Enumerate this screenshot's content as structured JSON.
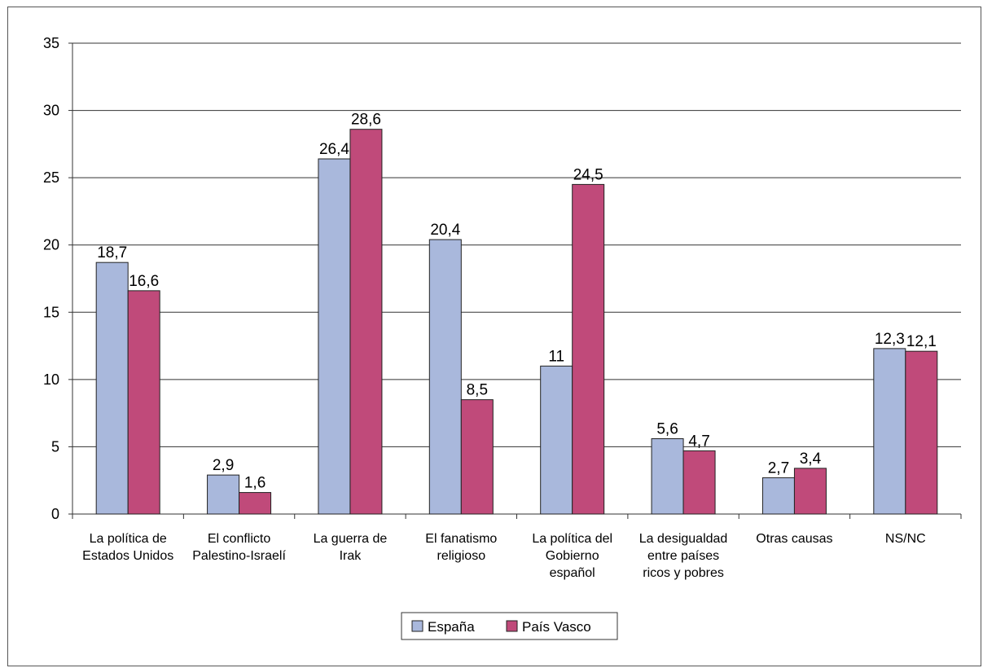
{
  "chart_data": {
    "type": "bar",
    "title": "",
    "xlabel": "",
    "ylabel": "",
    "ylim": [
      0,
      35
    ],
    "yticks": [
      0,
      5,
      10,
      15,
      20,
      25,
      30,
      35
    ],
    "yticks_label": [
      "0",
      "5",
      "10",
      "15",
      "20",
      "25",
      "30",
      "35"
    ],
    "grid": true,
    "legend_position": "bottom",
    "categories": [
      [
        "La política de",
        "Estados Unidos"
      ],
      [
        "El conflicto",
        "Palestino-Israelí"
      ],
      [
        "La guerra de",
        "Irak"
      ],
      [
        "El fanatismo",
        "religioso"
      ],
      [
        "La política del",
        "Gobierno",
        "español"
      ],
      [
        "La desigualdad",
        "entre países",
        "ricos y pobres"
      ],
      [
        "Otras causas"
      ],
      [
        "NS/NC"
      ]
    ],
    "series": [
      {
        "name": "España",
        "color": "#a9b8dc",
        "values": [
          18.7,
          2.9,
          26.4,
          20.4,
          11,
          5.6,
          2.7,
          12.3
        ],
        "labels": [
          "18,7",
          "2,9",
          "26,4",
          "20,4",
          "11",
          "5,6",
          "2,7",
          "12,3"
        ]
      },
      {
        "name": "País Vasco",
        "color": "#c04a7a",
        "values": [
          16.6,
          1.6,
          28.6,
          8.5,
          24.5,
          4.7,
          3.4,
          12.1
        ],
        "labels": [
          "16,6",
          "1,6",
          "28,6",
          "8,5",
          "24,5",
          "4,7",
          "3,4",
          "12,1"
        ]
      }
    ]
  }
}
